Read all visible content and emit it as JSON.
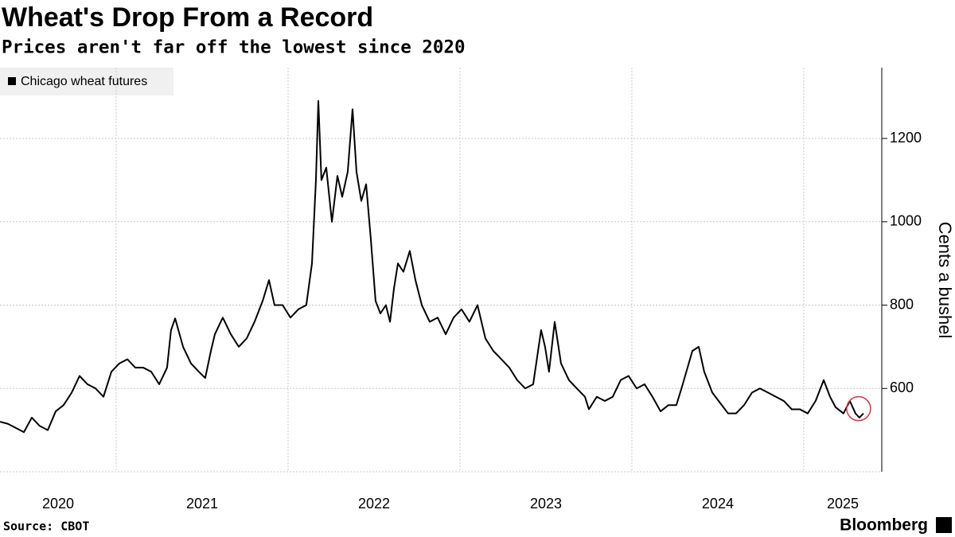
{
  "chart_data": {
    "type": "line",
    "title": "Wheat's Drop From a Record",
    "subtitle": "Prices aren't far off the lowest since 2020",
    "y_axis_label": "Cents a bushel",
    "source": "Source: CBOT",
    "credit": "Bloomberg",
    "x": [
      2020.324,
      2020.37,
      2020.417,
      2020.463,
      2020.509,
      2020.555,
      2020.602,
      2020.648,
      2020.694,
      2020.741,
      2020.787,
      2020.833,
      2020.88,
      2020.926,
      2020.972,
      2021.018,
      2021.065,
      2021.111,
      2021.157,
      2021.204,
      2021.25,
      2021.296,
      2021.319,
      2021.343,
      2021.389,
      2021.435,
      2021.481,
      2021.518,
      2021.551,
      2021.574,
      2021.62,
      2021.667,
      2021.713,
      2021.759,
      2021.805,
      2021.852,
      2021.889,
      2021.921,
      2021.968,
      2022.014,
      2022.06,
      2022.106,
      2022.139,
      2022.162,
      2022.176,
      2022.194,
      2022.222,
      2022.255,
      2022.287,
      2022.315,
      2022.347,
      2022.375,
      2022.398,
      2022.426,
      2022.454,
      2022.481,
      2022.509,
      2022.537,
      2022.569,
      2022.593,
      2022.616,
      2022.639,
      2022.671,
      2022.708,
      2022.741,
      2022.778,
      2022.824,
      2022.87,
      2022.917,
      2022.963,
      2023.009,
      2023.055,
      2023.102,
      2023.148,
      2023.194,
      2023.241,
      2023.287,
      2023.333,
      2023.38,
      2023.426,
      2023.472,
      2023.495,
      2023.518,
      2023.551,
      2023.588,
      2023.634,
      2023.68,
      2023.727,
      2023.75,
      2023.796,
      2023.843,
      2023.889,
      2023.935,
      2023.981,
      2024.028,
      2024.074,
      2024.12,
      2024.167,
      2024.213,
      2024.259,
      2024.296,
      2024.352,
      2024.389,
      2024.421,
      2024.468,
      2024.514,
      2024.56,
      2024.606,
      2024.653,
      2024.699,
      2024.745,
      2024.792,
      2024.838,
      2024.884,
      2024.93,
      2024.977,
      2025.023,
      2025.069,
      2025.116,
      2025.153,
      2025.185,
      2025.231,
      2025.268,
      2025.301,
      2025.324,
      2025.347
    ],
    "series": [
      {
        "name": "Chicago wheat futures",
        "color": "#000000",
        "values": [
          520,
          515,
          505,
          495,
          530,
          510,
          500,
          545,
          560,
          590,
          630,
          610,
          600,
          580,
          640,
          660,
          670,
          650,
          650,
          640,
          610,
          650,
          740,
          768,
          700,
          660,
          640,
          625,
          690,
          730,
          770,
          730,
          700,
          720,
          760,
          810,
          860,
          800,
          800,
          770,
          790,
          800,
          900,
          1100,
          1290,
          1100,
          1130,
          1000,
          1110,
          1060,
          1120,
          1270,
          1120,
          1050,
          1090,
          960,
          810,
          780,
          800,
          760,
          840,
          900,
          880,
          930,
          860,
          800,
          760,
          770,
          730,
          770,
          790,
          760,
          800,
          720,
          690,
          670,
          650,
          620,
          600,
          610,
          740,
          700,
          640,
          760,
          660,
          620,
          600,
          580,
          550,
          580,
          570,
          580,
          620,
          630,
          600,
          610,
          580,
          545,
          560,
          560,
          610,
          690,
          700,
          640,
          590,
          565,
          540,
          540,
          560,
          590,
          600,
          590,
          580,
          570,
          550,
          550,
          540,
          570,
          620,
          580,
          555,
          540,
          570,
          540,
          530,
          540
        ]
      }
    ],
    "xlim": [
      2020.324,
      2025.454
    ],
    "xticks": [
      2020,
      2021,
      2022,
      2023,
      2024,
      2025
    ],
    "ylim": [
      400,
      1370
    ],
    "yticks": [
      600,
      800,
      1000,
      1200
    ],
    "grid": true,
    "legend": "top-left"
  }
}
